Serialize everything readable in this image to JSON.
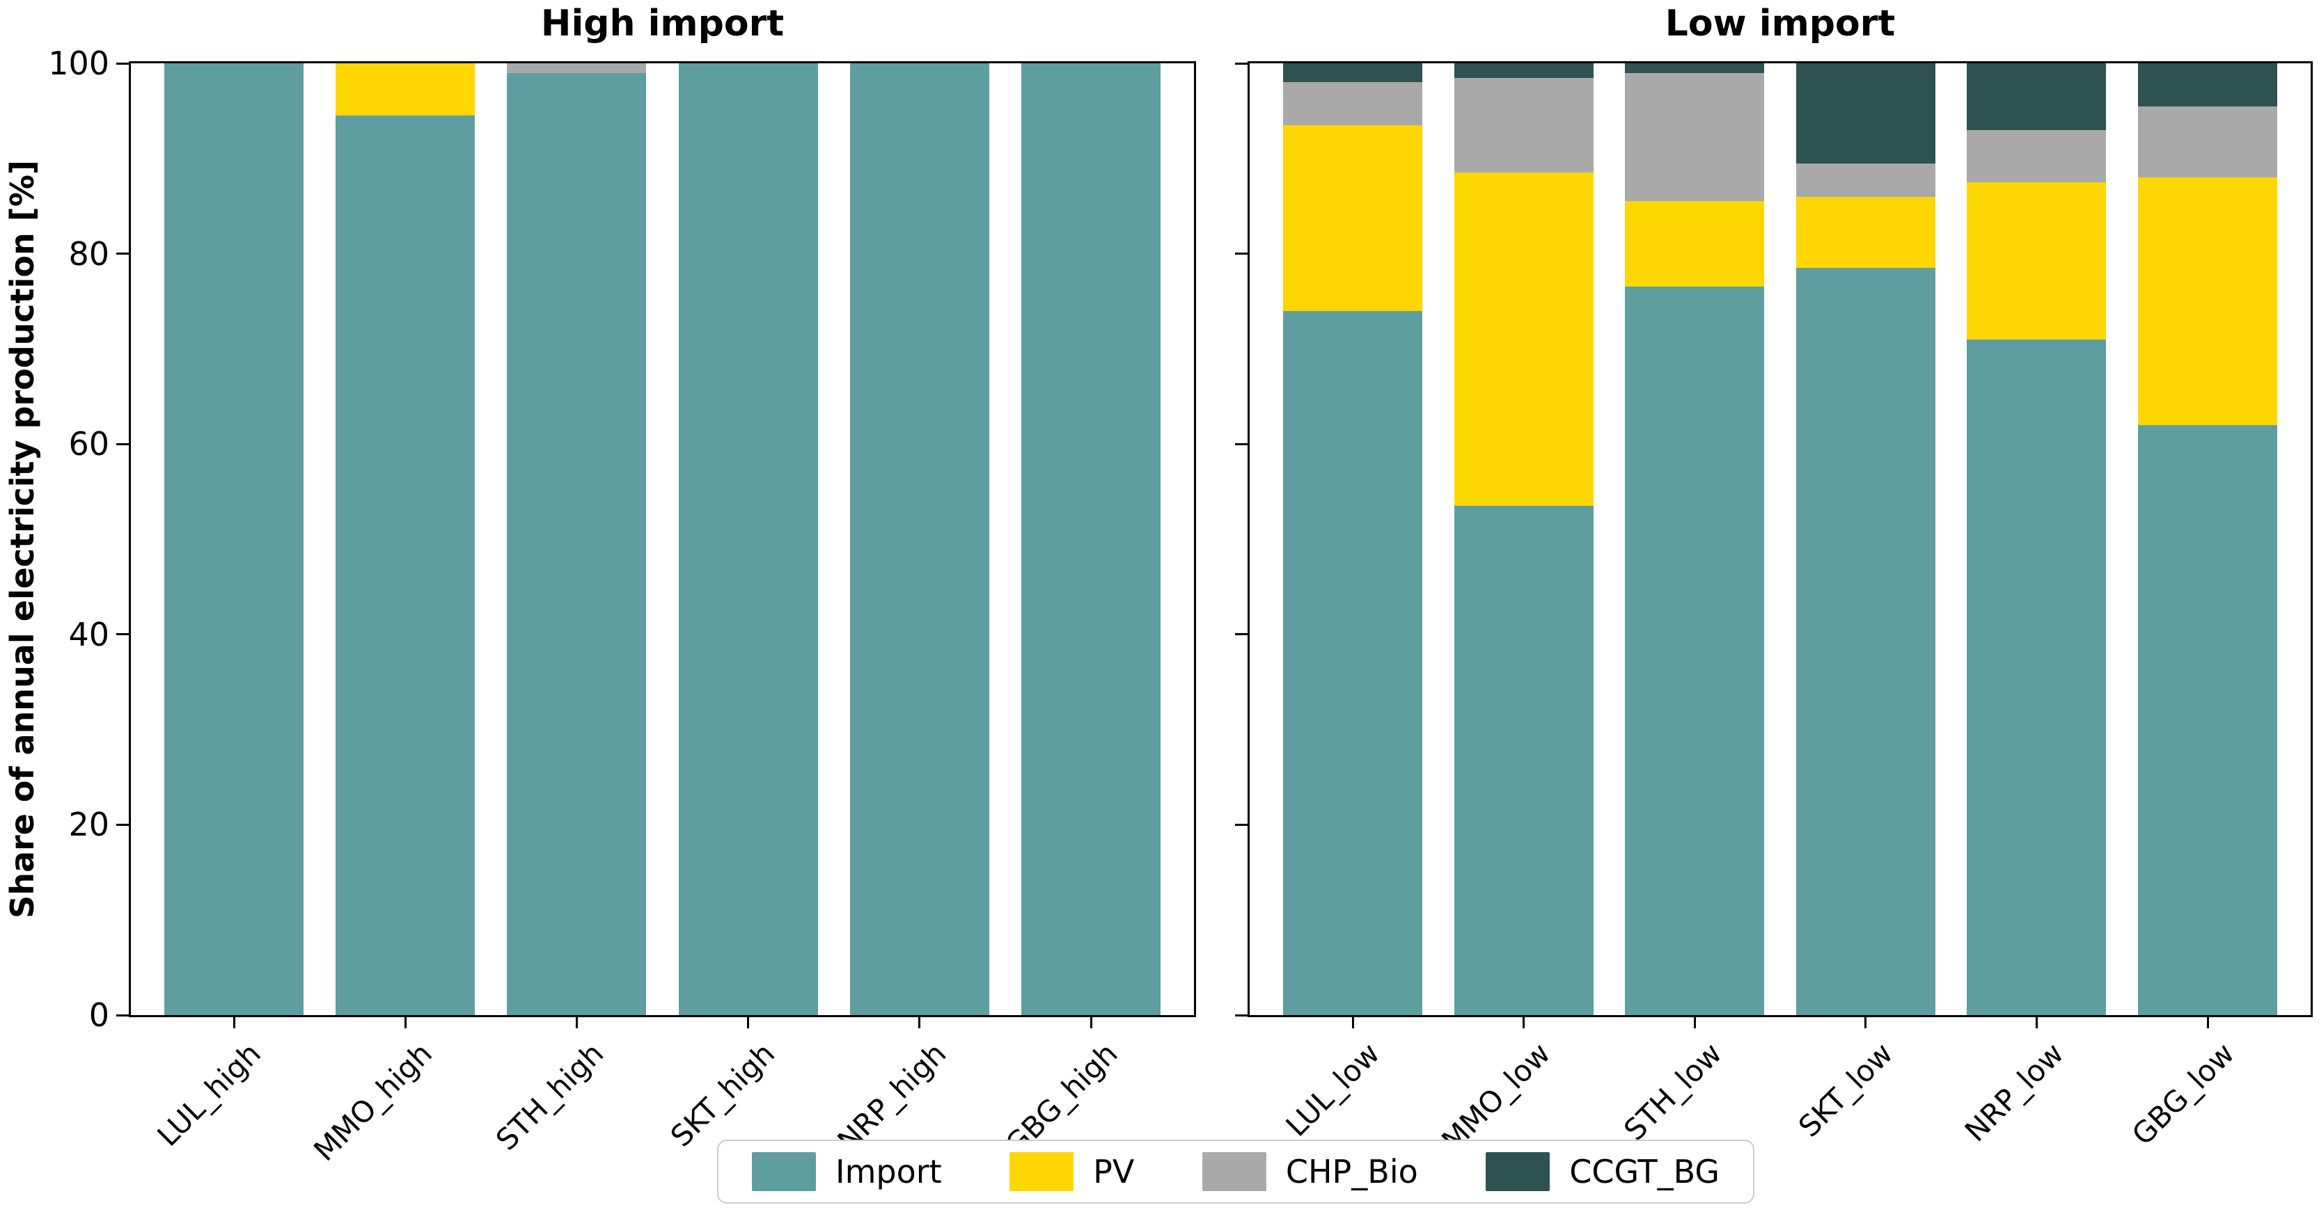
{
  "figure": {
    "ylabel": "Share of annual electricity production [%]"
  },
  "chart_data": [
    {
      "type": "bar",
      "stacked": true,
      "title": "High import",
      "categories": [
        "LUL_high",
        "MMO_high",
        "STH_high",
        "SKT_high",
        "NRP_high",
        "GBG_high"
      ],
      "series": [
        {
          "name": "Import",
          "color": "#5f9ea0",
          "values": [
            100,
            94.5,
            99,
            100,
            100,
            100
          ]
        },
        {
          "name": "PV",
          "color": "#ffd700",
          "values": [
            0,
            5.5,
            0,
            0,
            0,
            0
          ]
        },
        {
          "name": "CHP_Bio",
          "color": "#a9a9a9",
          "values": [
            0,
            0,
            1,
            0,
            0,
            0
          ]
        },
        {
          "name": "CCGT_BG",
          "color": "#2e5151",
          "values": [
            0,
            0,
            0,
            0,
            0,
            0
          ]
        }
      ],
      "ylabel": "Share of annual electricity production [%]",
      "ylim": [
        0,
        100
      ],
      "yticks": [
        0,
        20,
        40,
        60,
        80,
        100
      ],
      "grid": false,
      "xtick_rotation": 45
    },
    {
      "type": "bar",
      "stacked": true,
      "title": "Low import",
      "categories": [
        "LUL_low",
        "MMO_low",
        "STH_low",
        "SKT_low",
        "NRP_low",
        "GBG_low"
      ],
      "series": [
        {
          "name": "Import",
          "color": "#5f9ea0",
          "values": [
            74,
            53.5,
            76.5,
            78.5,
            71,
            62
          ]
        },
        {
          "name": "PV",
          "color": "#ffd700",
          "values": [
            19.5,
            35,
            9,
            7.5,
            16.5,
            26
          ]
        },
        {
          "name": "CHP_Bio",
          "color": "#a9a9a9",
          "values": [
            4.5,
            10,
            13.5,
            3.5,
            5.5,
            7.5
          ]
        },
        {
          "name": "CCGT_BG",
          "color": "#2e5151",
          "values": [
            2,
            1.5,
            1,
            10.5,
            7,
            4.5
          ]
        }
      ],
      "ylabel": "Share of annual electricity production [%]",
      "ylim": [
        0,
        100
      ],
      "yticks": [
        0,
        20,
        40,
        60,
        80,
        100
      ],
      "grid": false,
      "xtick_rotation": 45
    }
  ],
  "legend": {
    "position": "bottom-center",
    "items": [
      {
        "label": "Import",
        "color": "#5f9ea0"
      },
      {
        "label": "PV",
        "color": "#ffd700"
      },
      {
        "label": "CHP_Bio",
        "color": "#a9a9a9"
      },
      {
        "label": "CCGT_BG",
        "color": "#2e5151"
      }
    ]
  }
}
